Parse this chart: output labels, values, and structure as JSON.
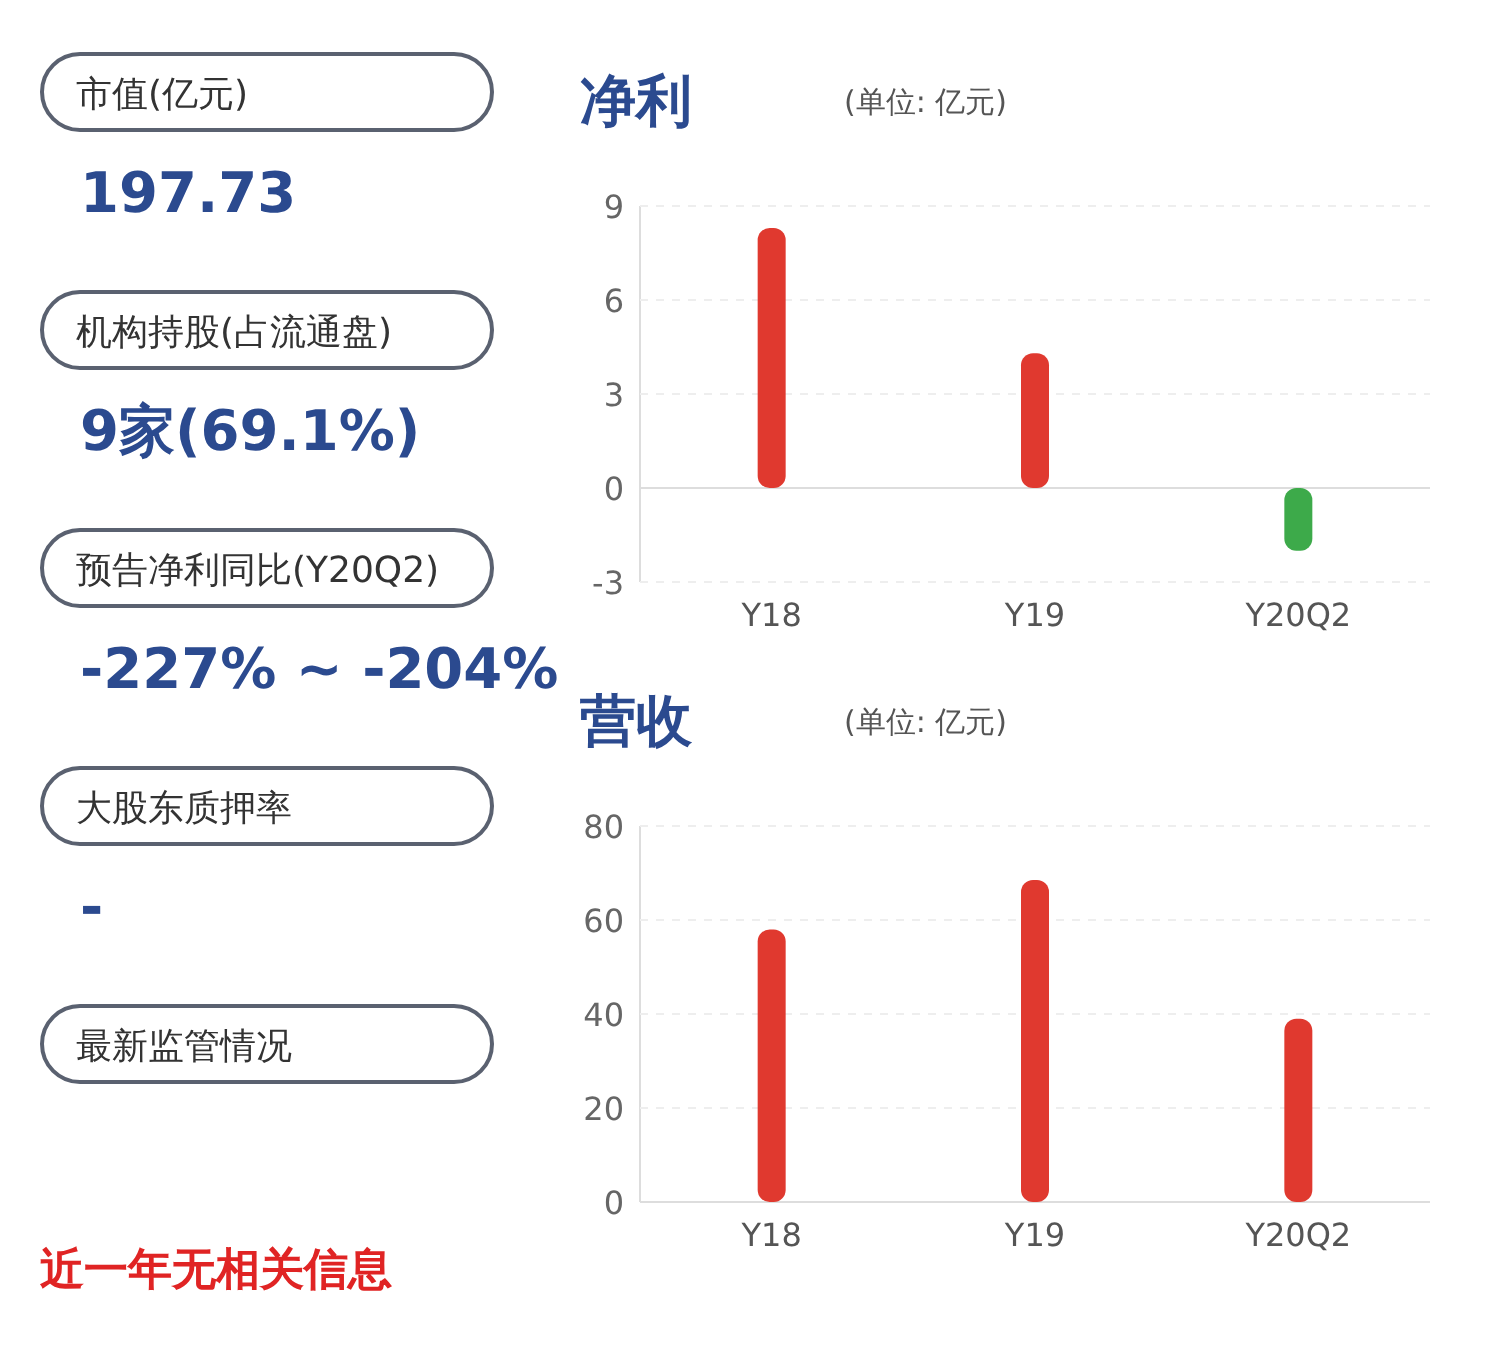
{
  "chart_data": [
    {
      "type": "other",
      "annotations": [
        "市值(亿元)",
        "197.73",
        "机构持股(占流通盘)",
        "9家(69.1%)",
        "预告净利同比(Y20Q2)",
        "-227% ~ -204%",
        "大股东质押率",
        "-",
        "最新监管情况",
        "近一年无相关信息"
      ]
    },
    {
      "type": "bar",
      "title": "净利",
      "subtitle": "(单位: 亿元)",
      "categories": [
        "Y18",
        "Y19",
        "Y20Q2"
      ],
      "values": [
        8.3,
        4.3,
        -2
      ],
      "colors": [
        "#e0392f",
        "#e0392f",
        "#3daa4a"
      ],
      "ylim": [
        -3,
        9
      ],
      "yticks": [
        -3,
        0,
        3,
        6,
        9
      ],
      "grid": "y"
    },
    {
      "type": "bar",
      "title": "营收",
      "subtitle": "(单位: 亿元)",
      "categories": [
        "Y18",
        "Y19",
        "Y20Q2"
      ],
      "values": [
        58,
        68.5,
        39
      ],
      "colors": [
        "#e0392f",
        "#e0392f",
        "#e0392f"
      ],
      "ylim": [
        0,
        80
      ],
      "yticks": [
        0,
        20,
        40,
        60,
        80
      ],
      "grid": "y"
    }
  ]
}
